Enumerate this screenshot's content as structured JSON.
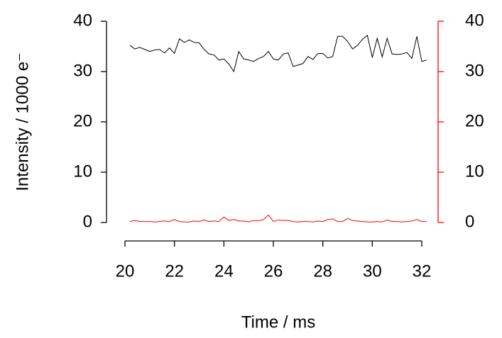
{
  "chart_data": {
    "type": "line",
    "xlabel": "Time / ms",
    "ylabel": "Intensity / 1000 e⁻",
    "x": [
      20.2,
      20.4,
      20.6,
      20.8,
      21.0,
      21.2,
      21.4,
      21.6,
      21.8,
      22.0,
      22.2,
      22.4,
      22.6,
      22.8,
      23.0,
      23.2,
      23.4,
      23.6,
      23.8,
      24.0,
      24.2,
      24.4,
      24.6,
      24.8,
      25.0,
      25.2,
      25.4,
      25.6,
      25.8,
      26.0,
      26.2,
      26.4,
      26.6,
      26.8,
      27.0,
      27.2,
      27.4,
      27.6,
      27.8,
      28.0,
      28.2,
      28.4,
      28.6,
      28.8,
      29.0,
      29.2,
      29.4,
      29.6,
      29.8,
      30.0,
      30.2,
      30.4,
      30.6,
      30.8,
      31.0,
      31.2,
      31.4,
      31.6,
      31.8,
      32.0,
      32.2
    ],
    "series": [
      {
        "color": "#000000",
        "values": [
          35.2,
          34.5,
          34.8,
          34.4,
          34.0,
          34.3,
          34.4,
          33.7,
          34.7,
          33.6,
          36.5,
          35.8,
          36.3,
          35.8,
          35.7,
          34.4,
          33.5,
          33.3,
          32.3,
          32.5,
          31.5,
          30.0,
          34.0,
          32.5,
          32.3,
          32.0,
          32.6,
          33.0,
          34.0,
          32.5,
          32.3,
          33.5,
          33.7,
          31.0,
          31.3,
          31.6,
          33.0,
          32.4,
          33.6,
          33.6,
          32.7,
          33.0,
          37.0,
          37.0,
          36.0,
          34.5,
          35.2,
          36.4,
          37.2,
          32.8,
          36.6,
          32.9,
          36.6,
          33.5,
          33.4,
          33.5,
          33.8,
          32.6,
          37.0,
          32.0,
          32.3
        ]
      },
      {
        "color": "#ff0000",
        "axis": "y2",
        "values": [
          0.2,
          0.4,
          0.2,
          0.2,
          0.2,
          0.1,
          0.2,
          0.3,
          0.2,
          0.6,
          0.2,
          0.1,
          0.1,
          0.3,
          0.2,
          0.5,
          0.2,
          0.3,
          0.2,
          1.1,
          0.4,
          0.6,
          0.3,
          0.3,
          0.1,
          0.4,
          0.3,
          0.6,
          1.5,
          0.2,
          0.5,
          0.4,
          0.4,
          0.2,
          0.1,
          0.2,
          0.2,
          0.1,
          0.3,
          0.2,
          0.6,
          0.7,
          0.2,
          0.2,
          0.8,
          0.4,
          0.3,
          0.2,
          0.1,
          0.1,
          0.2,
          0.1,
          0.5,
          0.2,
          0.2,
          0.1,
          0.2,
          0.3,
          0.6,
          0.2,
          0.2
        ]
      }
    ],
    "xlim": [
      20,
      32
    ],
    "xticks": [
      20,
      22,
      24,
      26,
      28,
      30,
      32
    ],
    "ylim": [
      0,
      40
    ],
    "yticks": [
      0,
      10,
      20,
      30,
      40
    ],
    "y2lim": [
      0,
      40
    ],
    "y2ticks": [
      0,
      10,
      20,
      30,
      40
    ],
    "y2color": "#ff0000"
  }
}
